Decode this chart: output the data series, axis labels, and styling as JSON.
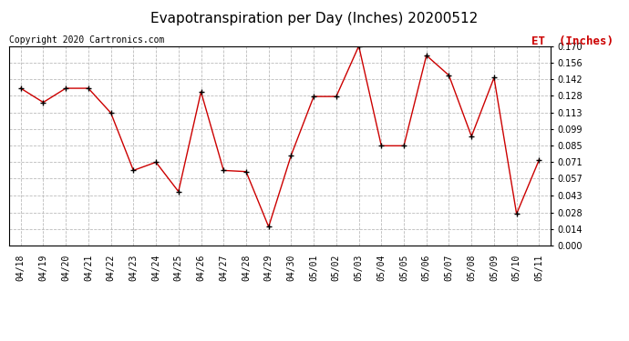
{
  "title": "Evapotranspiration per Day (Inches) 20200512",
  "copyright": "Copyright 2020 Cartronics.com",
  "legend_label": "ET  (Inches)",
  "dates": [
    "04/18",
    "04/19",
    "04/20",
    "04/21",
    "04/22",
    "04/23",
    "04/24",
    "04/25",
    "04/26",
    "04/27",
    "04/28",
    "04/29",
    "04/30",
    "05/01",
    "05/02",
    "05/03",
    "05/04",
    "05/05",
    "05/06",
    "05/07",
    "05/08",
    "05/09",
    "05/10",
    "05/11"
  ],
  "values": [
    0.134,
    0.122,
    0.134,
    0.134,
    0.113,
    0.064,
    0.071,
    0.046,
    0.131,
    0.064,
    0.063,
    0.016,
    0.077,
    0.127,
    0.127,
    0.17,
    0.085,
    0.085,
    0.162,
    0.145,
    0.093,
    0.143,
    0.027,
    0.073
  ],
  "line_color": "#cc0000",
  "marker": "+",
  "marker_color": "#000000",
  "ylim": [
    0.0,
    0.17
  ],
  "yticks": [
    0.0,
    0.014,
    0.028,
    0.043,
    0.057,
    0.071,
    0.085,
    0.099,
    0.113,
    0.128,
    0.142,
    0.156,
    0.17
  ],
  "bg_color": "#ffffff",
  "grid_color": "#bbbbbb",
  "title_fontsize": 11,
  "copyright_fontsize": 7,
  "legend_fontsize": 9,
  "tick_fontsize": 7
}
